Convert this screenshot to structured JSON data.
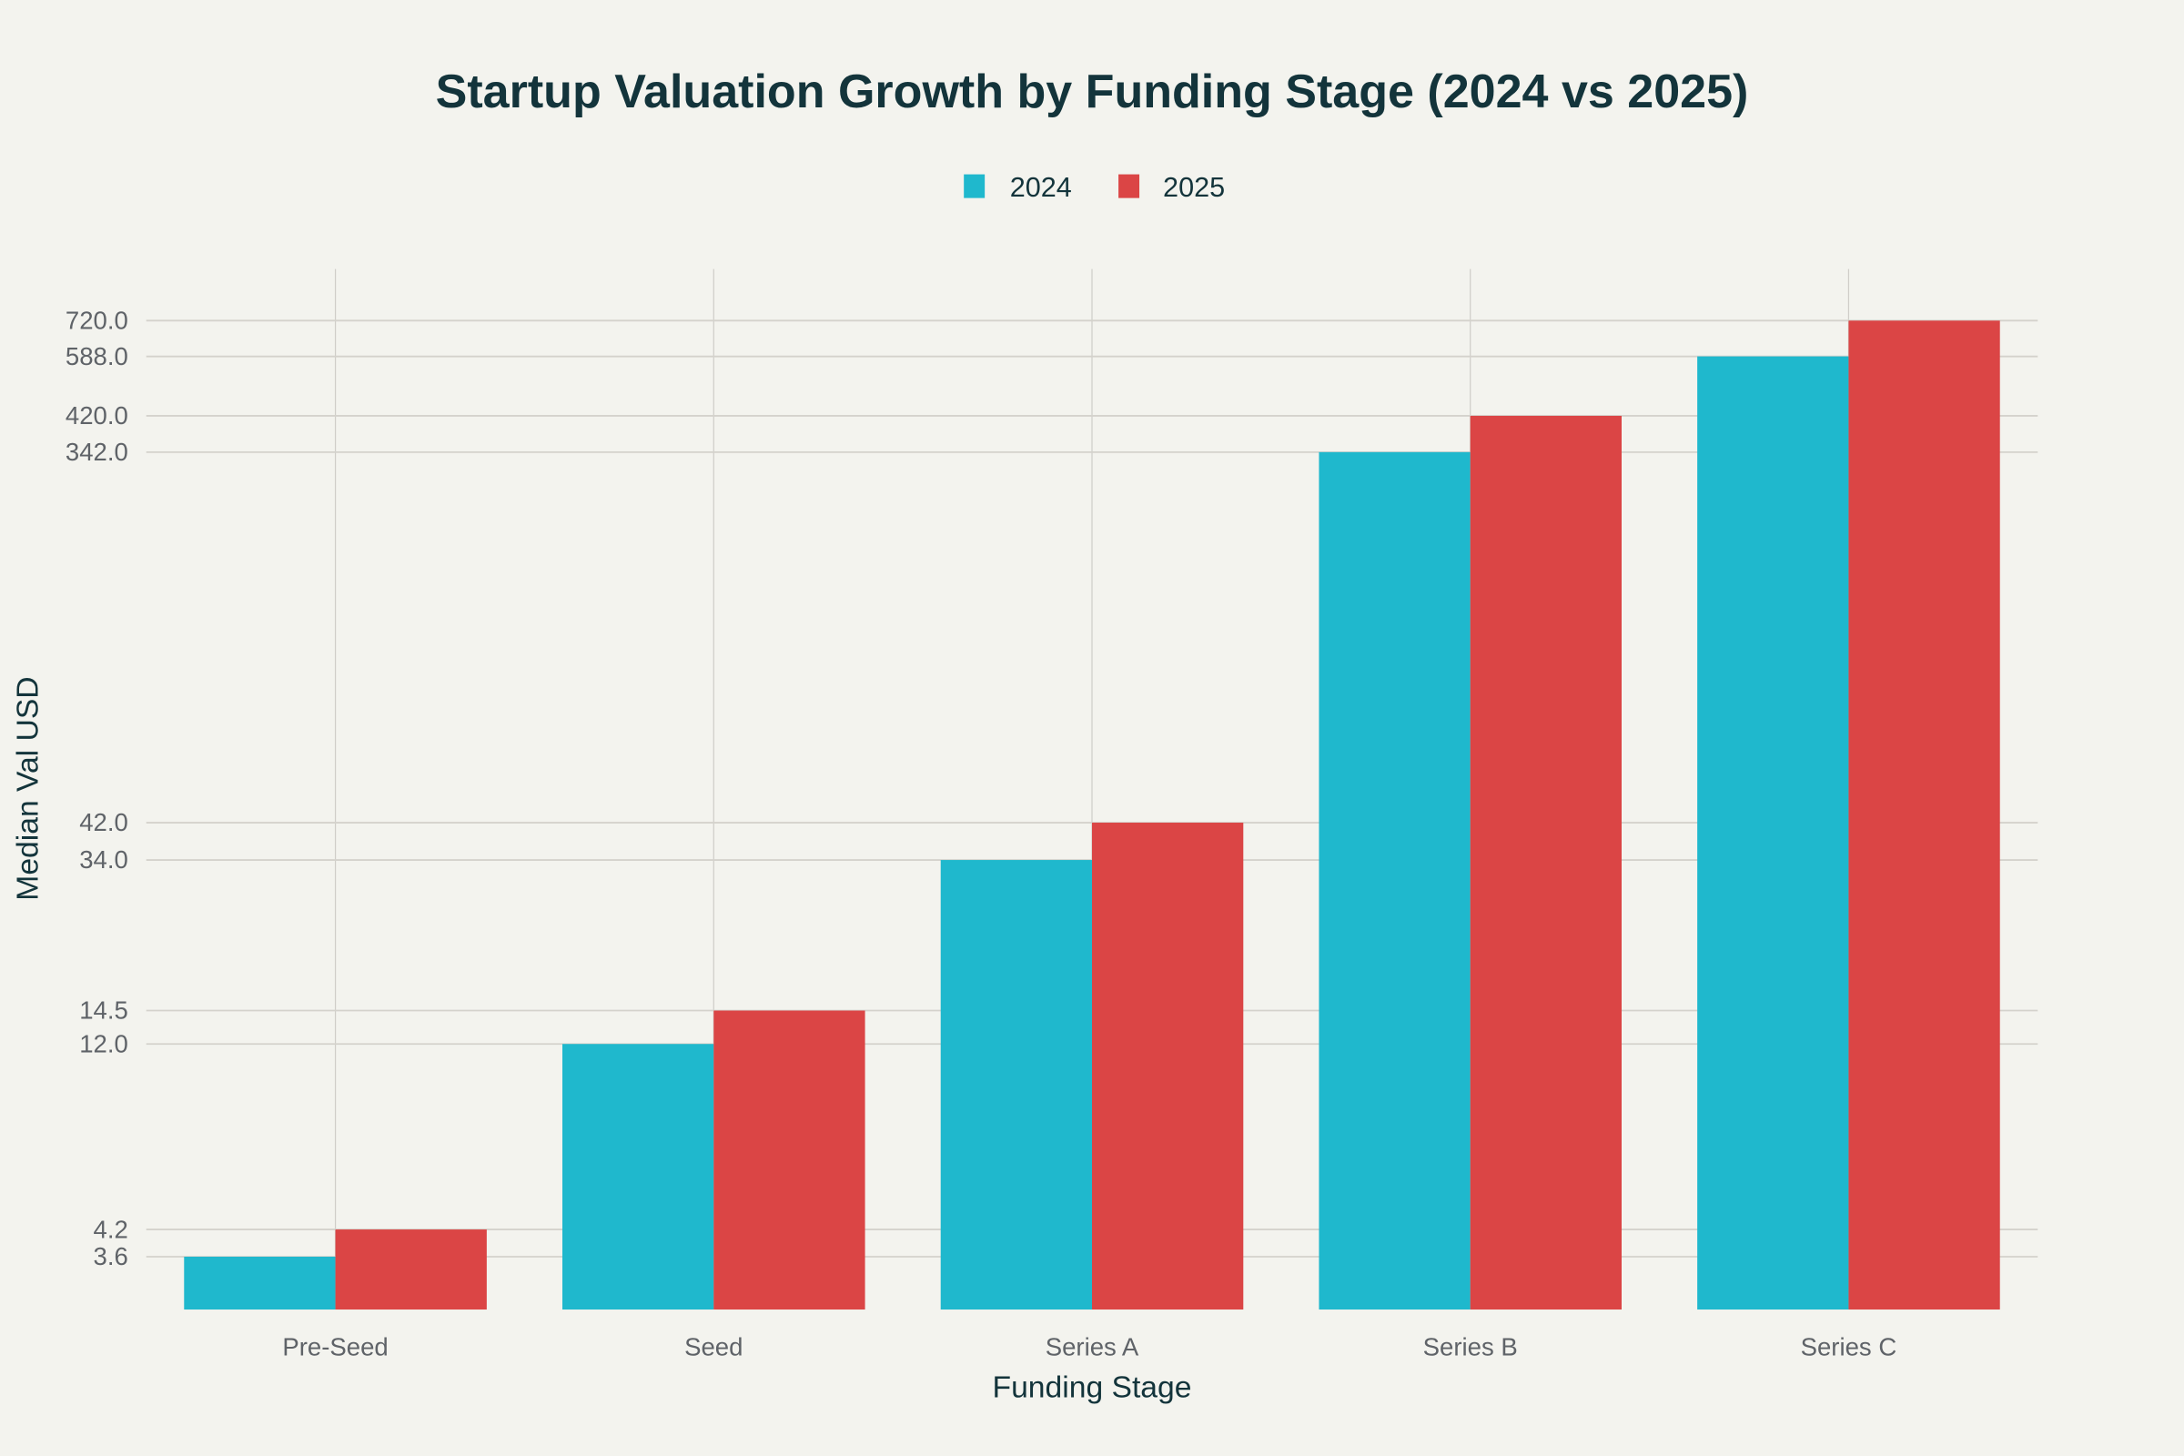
{
  "chart_data": {
    "type": "bar",
    "title": "Startup Valuation Growth by Funding Stage (2024 vs 2025)",
    "xlabel": "Funding Stage",
    "ylabel": "Median Val USD",
    "yscale": "log",
    "ylim": [
      2.67,
      964
    ],
    "grid": true,
    "legend_position": "top-center",
    "categories": [
      "Pre-Seed",
      "Seed",
      "Series A",
      "Series B",
      "Series C"
    ],
    "y_ticks": [
      "3.6",
      "4.2",
      "12.0",
      "14.5",
      "34.0",
      "42.0",
      "342.0",
      "420.0",
      "588.0",
      "720.0"
    ],
    "series": [
      {
        "name": "2024",
        "color": "#1fb8cd",
        "values": [
          3.6,
          12.0,
          34.0,
          342.0,
          588.0
        ]
      },
      {
        "name": "2025",
        "color": "#db4545",
        "values": [
          4.2,
          14.5,
          42.0,
          420.0,
          720.0
        ]
      }
    ]
  }
}
